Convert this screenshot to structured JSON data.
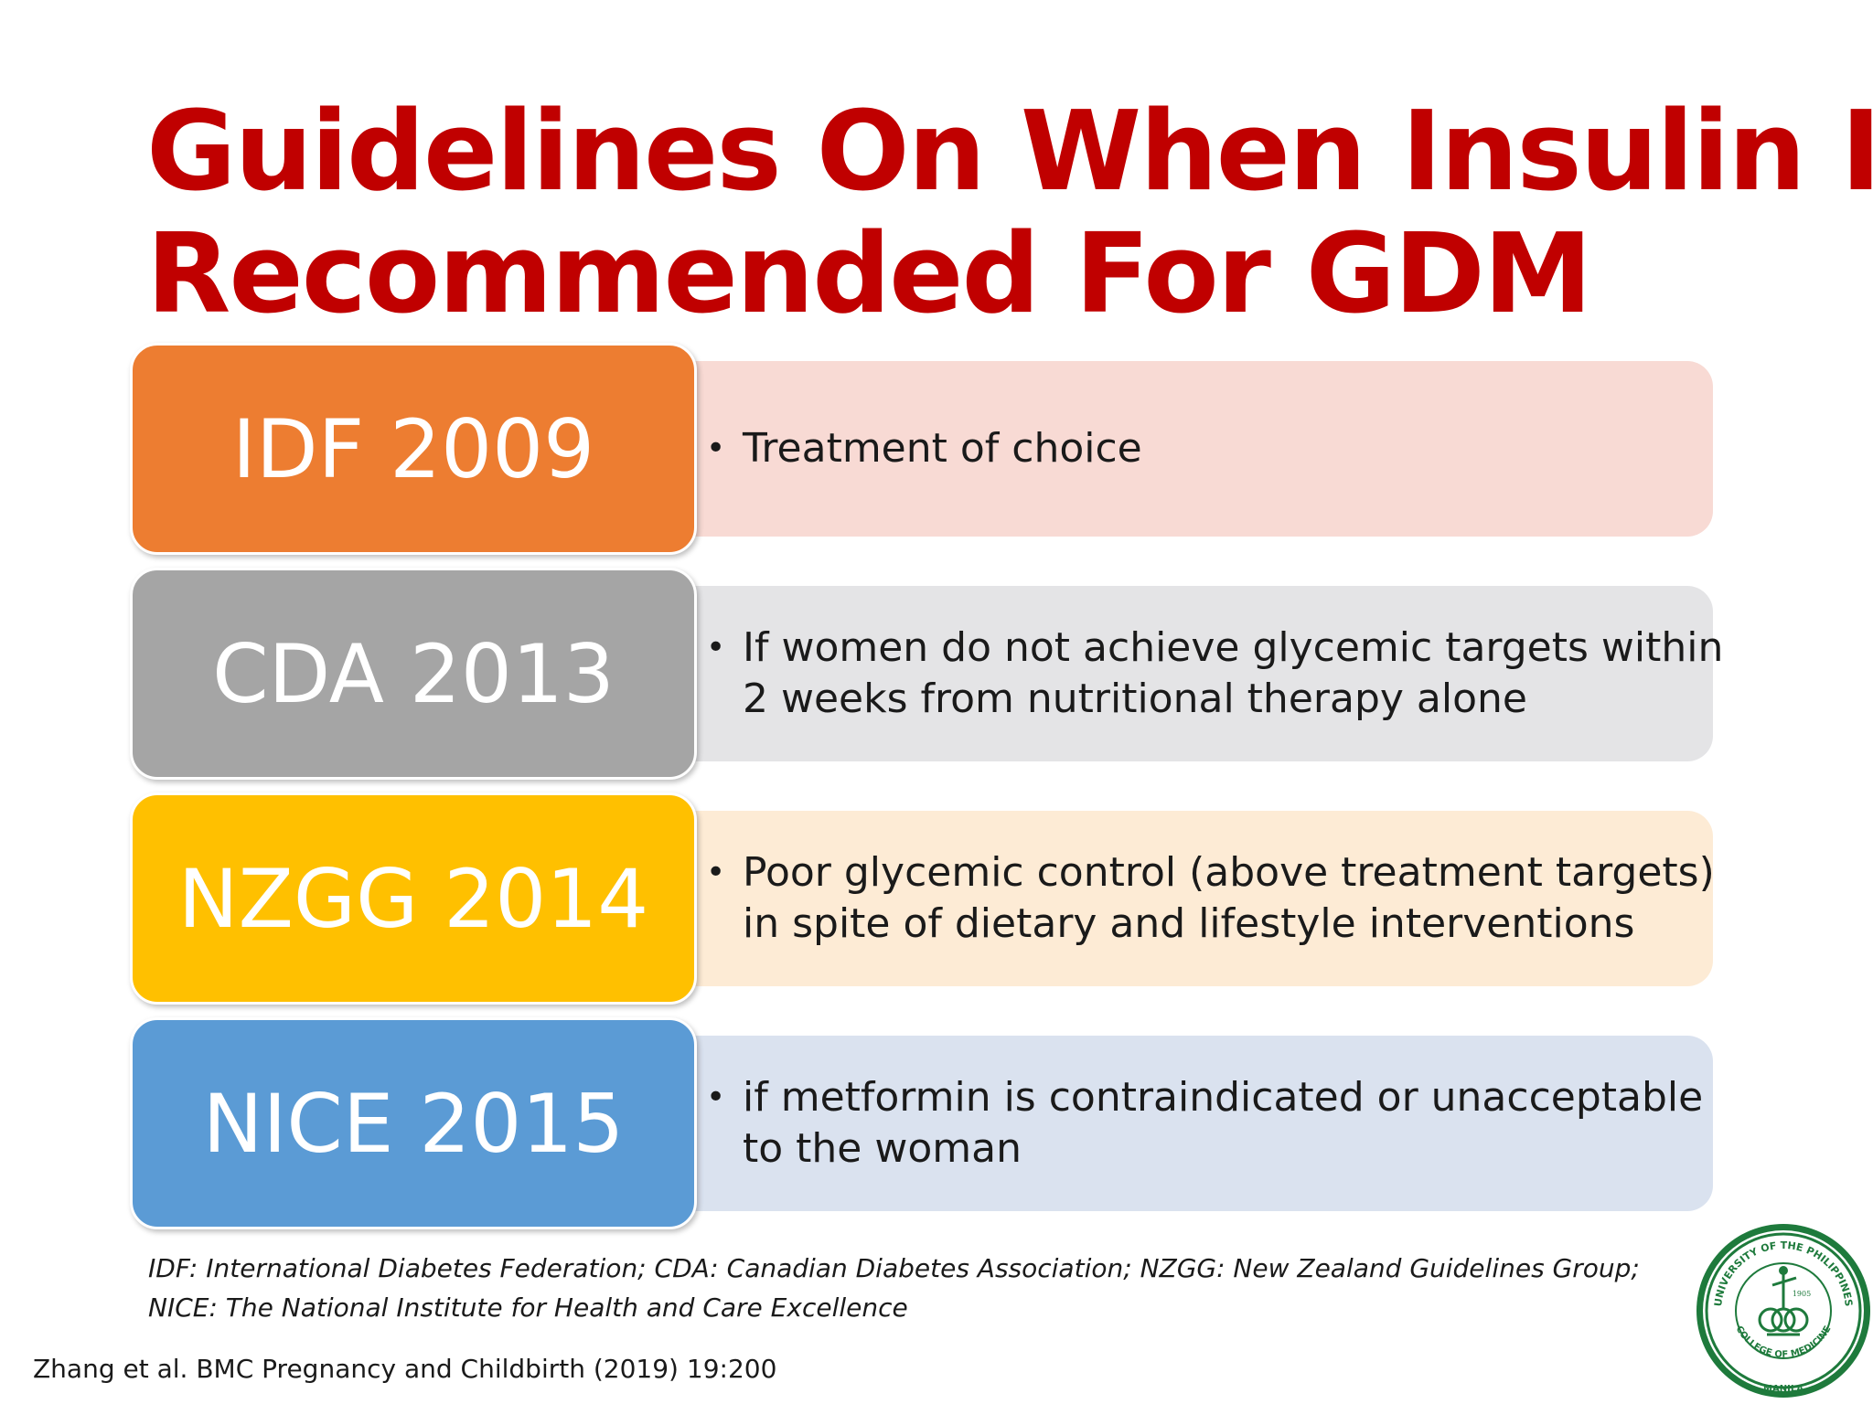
{
  "title": {
    "line1": "Guidelines On When Insulin Is",
    "line2": "Recommended For GDM"
  },
  "guidelines": [
    {
      "label": "IDF 2009",
      "label_color": "#ED7D31",
      "detail_color": "#F8DAD4",
      "bullet": "•",
      "lines": [
        "Treatment of choice"
      ]
    },
    {
      "label": "CDA 2013",
      "label_color": "#A5A5A5",
      "detail_color": "#E4E4E6",
      "bullet": "•",
      "lines": [
        "If women do not achieve glycemic targets within",
        "2 weeks from nutritional therapy alone"
      ]
    },
    {
      "label": "NZGG 2014",
      "label_color": "#FFC000",
      "detail_color": "#FDEBD5",
      "bullet": "•",
      "lines": [
        "Poor glycemic control (above treatment targets)",
        "in spite of dietary and lifestyle interventions"
      ]
    },
    {
      "label": "NICE 2015",
      "label_color": "#5B9BD5",
      "detail_color": "#DAE2EF",
      "bullet": "•",
      "lines": [
        "if metformin is contraindicated or unacceptable",
        "to the woman"
      ]
    }
  ],
  "abbreviations": {
    "line1": "IDF: International Diabetes Federation; CDA: Canadian Diabetes Association; NZGG: New Zealand Guidelines Group;",
    "line2": "NICE: The National Institute for Health and Care Excellence"
  },
  "citation": "Zhang et al. BMC Pregnancy and Childbirth (2019) 19:200",
  "seal": {
    "icon": "college-of-medicine-seal",
    "color": "#1E7A3C",
    "top_text": "UNIVERSITY OF THE PHILIPPINES",
    "middle_text": "COLLEGE OF MEDICINE",
    "bottom_text": "MANILA",
    "year": "1905"
  }
}
